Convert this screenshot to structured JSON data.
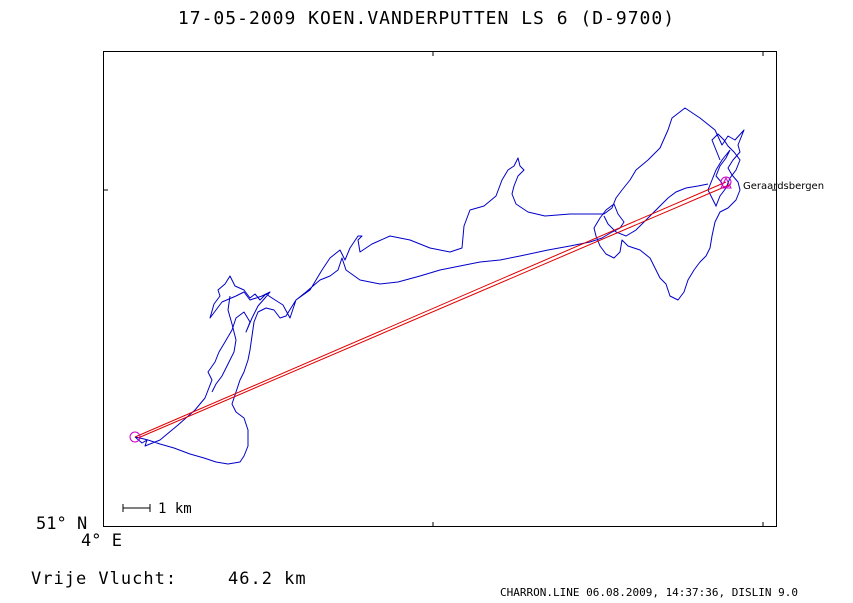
{
  "title": "17-05-2009   KOEN.VANDERPUTTEN   LS 6 (D-9700)",
  "place_label": "Geraardsbergen",
  "scale_label": "1 km",
  "latitude_label": "51° N",
  "longitude_label": "4° E",
  "flight": {
    "label": "Vrije Vlucht:",
    "value": "46.2 km"
  },
  "footer": "CHARRON.LINE 06.08.2009, 14:37:36, DISLIN 9.0",
  "colors": {
    "track": "#0000c8",
    "task_line": "#e00000",
    "waypoint_marker": "#c800c8"
  }
}
